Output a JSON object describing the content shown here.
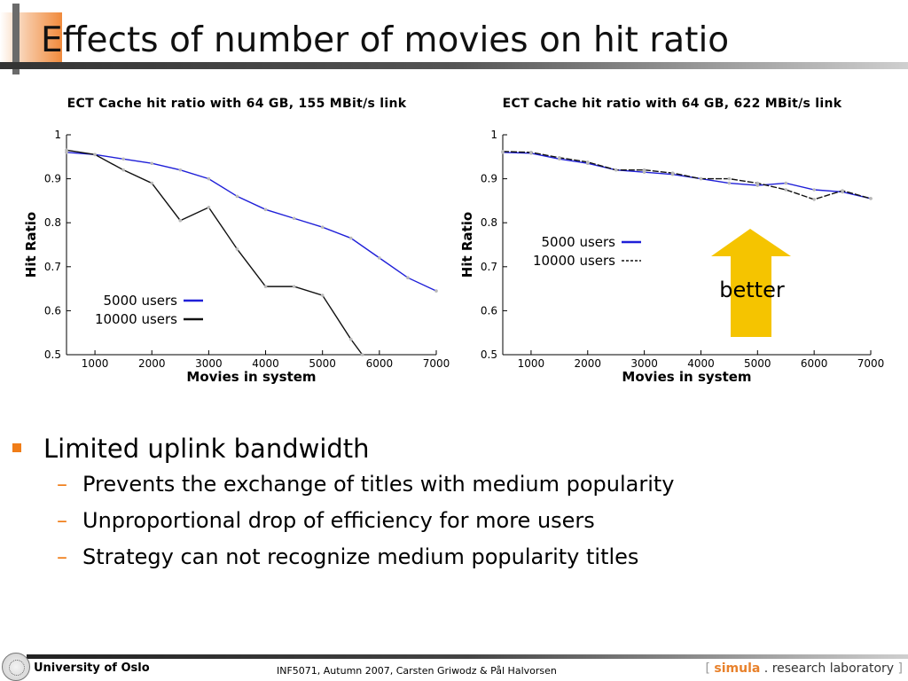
{
  "slide": {
    "title": "Effects of number of movies on hit ratio",
    "bullets": [
      {
        "text": "Limited uplink bandwidth",
        "sub": [
          "Prevents the exchange of titles with medium popularity",
          "Unproportional drop of efficiency for more users",
          "Strategy can not recognize medium popularity titles"
        ]
      }
    ],
    "annotation": {
      "text": "better",
      "color": "#f5c400"
    },
    "footer": {
      "university": "University of Oslo",
      "course": "INF5071,  Autumn 2007,  Carsten Griwodz & Pål Halvorsen",
      "lab": {
        "open": "[",
        "simula": "simula",
        "rest": ". research laboratory",
        "close": "]"
      }
    },
    "colors": {
      "bullet_orange": "#f07d18",
      "blue_series": "#1f1fd8",
      "black_series": "#111111"
    }
  },
  "chart_data": [
    {
      "type": "line",
      "title": "ECT Cache hit ratio with 64 GB, 155 MBit/s link",
      "xlabel": "Movies in system",
      "ylabel": "Hit Ratio",
      "xlim": [
        500,
        7000
      ],
      "ylim": [
        0.5,
        1
      ],
      "xticks": [
        1000,
        2000,
        3000,
        4000,
        5000,
        6000,
        7000
      ],
      "yticks": [
        0.5,
        0.6,
        0.7,
        0.8,
        0.9,
        1
      ],
      "ytick_labels": [
        "0.5",
        "0.6",
        "0.7",
        "0.8",
        "0.9",
        "1"
      ],
      "legend_position": "bottom-left",
      "series": [
        {
          "name": "5000 users",
          "color": "#1f1fd8",
          "dashed": false,
          "x": [
            500,
            1000,
            1500,
            2000,
            2500,
            3000,
            3500,
            4000,
            4500,
            5000,
            5500,
            6000,
            6500,
            7000
          ],
          "y": [
            0.96,
            0.955,
            0.945,
            0.935,
            0.92,
            0.9,
            0.86,
            0.83,
            0.81,
            0.79,
            0.765,
            0.72,
            0.675,
            0.645
          ]
        },
        {
          "name": "10000 users",
          "color": "#111111",
          "dashed": false,
          "x": [
            500,
            1000,
            1500,
            2000,
            2500,
            3000,
            3500,
            4000,
            4500,
            5000,
            5500,
            5700
          ],
          "y": [
            0.965,
            0.955,
            0.92,
            0.89,
            0.805,
            0.835,
            0.74,
            0.655,
            0.655,
            0.635,
            0.535,
            0.5
          ]
        }
      ]
    },
    {
      "type": "line",
      "title": "ECT Cache hit ratio with 64 GB, 622 MBit/s link",
      "xlabel": "Movies in system",
      "ylabel": "Hit Ratio",
      "xlim": [
        500,
        7000
      ],
      "ylim": [
        0.5,
        1
      ],
      "xticks": [
        1000,
        2000,
        3000,
        4000,
        5000,
        6000,
        7000
      ],
      "yticks": [
        0.5,
        0.6,
        0.7,
        0.8,
        0.9,
        1
      ],
      "ytick_labels": [
        "0.5",
        "0.6",
        "0.7",
        "0.8",
        "0.9",
        "1"
      ],
      "legend_position": "top-left",
      "series": [
        {
          "name": "5000 users",
          "color": "#1f1fd8",
          "dashed": false,
          "x": [
            500,
            1000,
            1500,
            2000,
            2500,
            3000,
            3500,
            4000,
            4500,
            5000,
            5500,
            6000,
            6500,
            7000
          ],
          "y": [
            0.96,
            0.958,
            0.945,
            0.935,
            0.92,
            0.915,
            0.91,
            0.9,
            0.89,
            0.885,
            0.89,
            0.875,
            0.87,
            0.855
          ]
        },
        {
          "name": "10000 users",
          "color": "#111111",
          "dashed": true,
          "x": [
            500,
            1000,
            1500,
            2000,
            2500,
            3000,
            3500,
            4000,
            4500,
            5000,
            5500,
            6000,
            6500,
            7000
          ],
          "y": [
            0.962,
            0.96,
            0.948,
            0.938,
            0.92,
            0.92,
            0.913,
            0.9,
            0.9,
            0.89,
            0.875,
            0.853,
            0.873,
            0.855
          ]
        }
      ]
    }
  ]
}
